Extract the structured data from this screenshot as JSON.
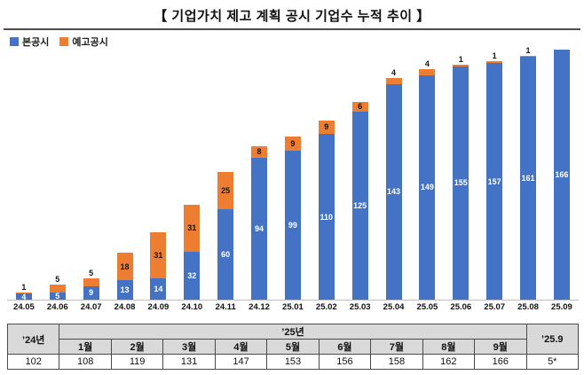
{
  "title": "【 기업가치 제고 계획 공시 기업수 누적 추이 】",
  "legend": [
    {
      "label": "본공시",
      "color": "#4472C4"
    },
    {
      "label": "예고공시",
      "color": "#ED7D31"
    }
  ],
  "colors": {
    "main_bar": "#4472C4",
    "preliminary_bar": "#ED7D31",
    "table_header_bg": "#d9d9d9"
  },
  "chart_data": {
    "type": "bar",
    "stacked": true,
    "title": "기업가치 제고 계획 공시 기업수 누적 추이",
    "xlabel": "",
    "ylabel": "",
    "ylim": [
      0,
      175
    ],
    "grid": false,
    "legend_position": "top-left",
    "categories": [
      "24.05",
      "24.06",
      "24.07",
      "24.08",
      "24.09",
      "24.10",
      "24.11",
      "24.12",
      "25.01",
      "25.02",
      "25.03",
      "25.04",
      "25.05",
      "25.06",
      "25.07",
      "25.08",
      "25.09"
    ],
    "series": [
      {
        "name": "본공시",
        "color": "#4472C4",
        "values": [
          4,
          5,
          9,
          13,
          14,
          32,
          60,
          94,
          99,
          110,
          125,
          143,
          149,
          155,
          157,
          161,
          166
        ]
      },
      {
        "name": "예고공시",
        "color": "#ED7D31",
        "values": [
          1,
          5,
          5,
          18,
          31,
          31,
          25,
          8,
          9,
          9,
          6,
          4,
          4,
          1,
          1,
          1,
          0
        ]
      }
    ],
    "totals": [
      5,
      10,
      14,
      31,
      45,
      63,
      85,
      102,
      108,
      119,
      131,
      147,
      153,
      156,
      158,
      162,
      166
    ]
  },
  "table": {
    "col1_header": "’24년",
    "span_header": "’25년",
    "last_header": "’25.9",
    "month_headers": [
      "1월",
      "2월",
      "3월",
      "4월",
      "5월",
      "6월",
      "7월",
      "8월",
      "9월"
    ],
    "values": [
      "102",
      "108",
      "119",
      "131",
      "147",
      "153",
      "156",
      "158",
      "162",
      "166",
      "5*"
    ]
  }
}
